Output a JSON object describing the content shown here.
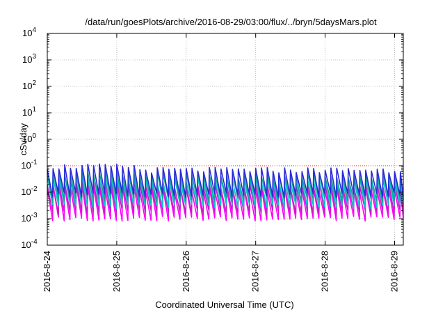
{
  "chart_data": {
    "type": "line",
    "title": "/data/run/goesPlots/archive/2016-08-29/03:00/flux/../bryn/5daysMars.plot",
    "xlabel": "Coordinated Universal Time (UTC)",
    "ylabel": "cSv/day",
    "yscale": "log",
    "ylim": [
      0.0001,
      10000
    ],
    "xlim": [
      "2016-08-24",
      "2016-08-29 03:00"
    ],
    "yticks": [
      {
        "base": "10",
        "exp": "-4",
        "value": 0.0001
      },
      {
        "base": "10",
        "exp": "-3",
        "value": 0.001
      },
      {
        "base": "10",
        "exp": "-2",
        "value": 0.01
      },
      {
        "base": "10",
        "exp": "-1",
        "value": 0.1
      },
      {
        "base": "10",
        "exp": "0",
        "value": 1
      },
      {
        "base": "10",
        "exp": "1",
        "value": 10
      },
      {
        "base": "10",
        "exp": "2",
        "value": 100
      },
      {
        "base": "10",
        "exp": "3",
        "value": 1000
      },
      {
        "base": "10",
        "exp": "4",
        "value": 10000
      }
    ],
    "xticks": [
      {
        "label": "2016-8-24",
        "day": 0
      },
      {
        "label": "2016-8-25",
        "day": 1
      },
      {
        "label": "2016-8-26",
        "day": 2
      },
      {
        "label": "2016-8-27",
        "day": 3
      },
      {
        "label": "2016-8-28",
        "day": 4
      },
      {
        "label": "2016-8-29",
        "day": 5
      }
    ],
    "grid": true,
    "reference_line": {
      "value": 0.1,
      "color": "#e0201c"
    },
    "period_hours": 2,
    "series": [
      {
        "color": "#ff00ff",
        "peak": 0.012,
        "trough": 0.001
      },
      {
        "color": "#c31fc3",
        "peak": 0.018,
        "trough": 0.0018
      },
      {
        "color": "#00c8c8",
        "peak": 0.03,
        "trough": 0.003
      },
      {
        "color": "#1aa09a",
        "peak": 0.045,
        "trough": 0.005
      },
      {
        "color": "#2a2ad8",
        "peak": 0.07,
        "trough": 0.008
      }
    ]
  }
}
